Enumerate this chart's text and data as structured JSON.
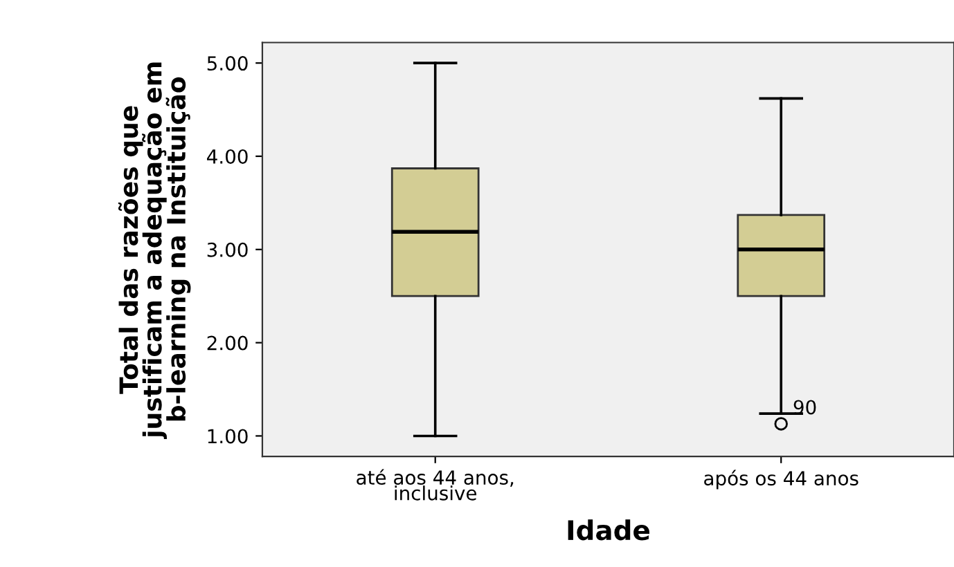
{
  "chart_data": {
    "type": "box",
    "xlabel": "Idade",
    "ylabel": "Total das razões que\njustificam a adequação em\nb-learning na Instituição",
    "categories": [
      "até aos 44 anos,\ninclusive",
      "após os 44 anos"
    ],
    "boxes": [
      {
        "low": 1.0,
        "q1": 2.5,
        "median": 3.19,
        "q3": 3.87,
        "high": 5.0
      },
      {
        "low": 1.24,
        "q1": 2.5,
        "median": 3.0,
        "q3": 3.37,
        "high": 4.62,
        "outliers": [
          1.13
        ]
      }
    ],
    "color": "#d3cd94",
    "ylim": [
      0.78,
      5.22
    ],
    "yticks": [
      {
        "value": 1,
        "label": "1.00"
      },
      {
        "value": 2,
        "label": "2.00"
      },
      {
        "value": 3,
        "label": "3.00"
      },
      {
        "value": 4,
        "label": "4.00"
      },
      {
        "value": 5,
        "label": "5.00"
      }
    ],
    "annotations": [
      "90"
    ],
    "grid": false
  }
}
